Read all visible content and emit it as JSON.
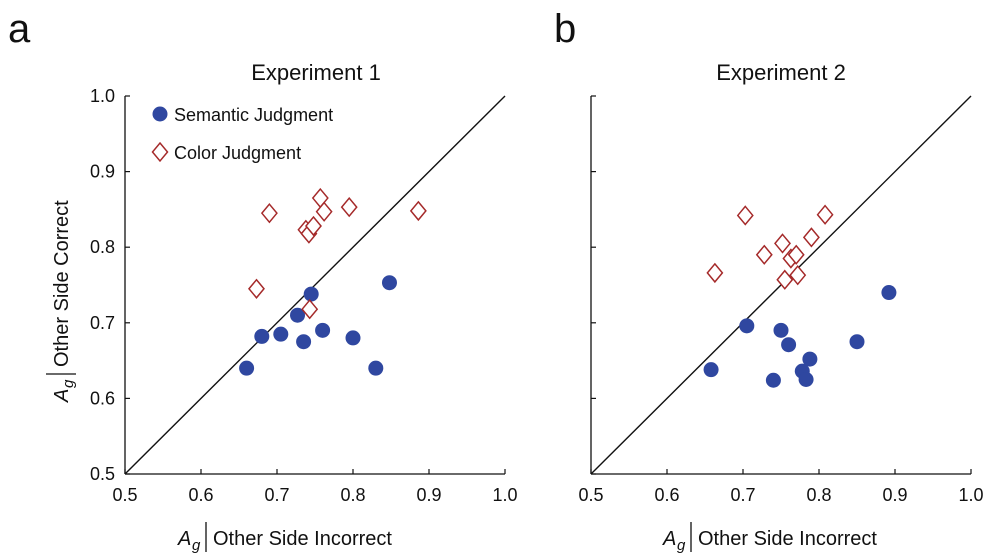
{
  "colors": {
    "semantic": "#2f47a0",
    "color": "#a52a2a",
    "axis": "#111111"
  },
  "chart_data": [
    {
      "type": "scatter",
      "panel_label": "a",
      "title": "Experiment 1",
      "xlabel_symbol": "A",
      "xlabel_sub": "g",
      "xlabel_text": "Other Side Incorrect",
      "ylabel_symbol": "A",
      "ylabel_sub": "g",
      "ylabel_text": "Other Side Correct",
      "xlim": [
        0.5,
        1.0
      ],
      "ylim": [
        0.5,
        1.0
      ],
      "xticks": [
        "0.5",
        "0.6",
        "0.7",
        "0.8",
        "0.9",
        "1.0"
      ],
      "yticks": [
        "0.5",
        "0.6",
        "0.7",
        "0.8",
        "0.9",
        "1.0"
      ],
      "diagonal": true,
      "legend": {
        "position": "top-left",
        "entries": [
          "Semantic Judgment",
          "Color Judgment"
        ]
      },
      "series": [
        {
          "name": "Semantic Judgment",
          "marker": "circle",
          "points": [
            [
              0.66,
              0.64
            ],
            [
              0.68,
              0.682
            ],
            [
              0.705,
              0.685
            ],
            [
              0.727,
              0.71
            ],
            [
              0.735,
              0.675
            ],
            [
              0.745,
              0.738
            ],
            [
              0.76,
              0.69
            ],
            [
              0.8,
              0.68
            ],
            [
              0.83,
              0.64
            ],
            [
              0.848,
              0.753
            ]
          ]
        },
        {
          "name": "Color Judgment",
          "marker": "diamond",
          "points": [
            [
              0.673,
              0.745
            ],
            [
              0.69,
              0.845
            ],
            [
              0.738,
              0.823
            ],
            [
              0.742,
              0.818
            ],
            [
              0.748,
              0.828
            ],
            [
              0.757,
              0.865
            ],
            [
              0.762,
              0.847
            ],
            [
              0.795,
              0.853
            ],
            [
              0.886,
              0.848
            ],
            [
              0.743,
              0.718
            ]
          ]
        }
      ]
    },
    {
      "type": "scatter",
      "panel_label": "b",
      "title": "Experiment 2",
      "xlabel_symbol": "A",
      "xlabel_sub": "g",
      "xlabel_text": "Other Side Incorrect",
      "xlim": [
        0.5,
        1.0
      ],
      "ylim": [
        0.5,
        1.0
      ],
      "xticks": [
        "0.5",
        "0.6",
        "0.7",
        "0.8",
        "0.9",
        "1.0"
      ],
      "diagonal": true,
      "series": [
        {
          "name": "Semantic Judgment",
          "marker": "circle",
          "points": [
            [
              0.658,
              0.638
            ],
            [
              0.705,
              0.696
            ],
            [
              0.74,
              0.624
            ],
            [
              0.75,
              0.69
            ],
            [
              0.76,
              0.671
            ],
            [
              0.778,
              0.636
            ],
            [
              0.783,
              0.625
            ],
            [
              0.788,
              0.652
            ],
            [
              0.85,
              0.675
            ],
            [
              0.892,
              0.74
            ]
          ]
        },
        {
          "name": "Color Judgment",
          "marker": "diamond",
          "points": [
            [
              0.663,
              0.766
            ],
            [
              0.703,
              0.842
            ],
            [
              0.728,
              0.79
            ],
            [
              0.752,
              0.805
            ],
            [
              0.755,
              0.757
            ],
            [
              0.763,
              0.785
            ],
            [
              0.77,
              0.79
            ],
            [
              0.772,
              0.763
            ],
            [
              0.79,
              0.813
            ],
            [
              0.808,
              0.843
            ]
          ]
        }
      ]
    }
  ]
}
